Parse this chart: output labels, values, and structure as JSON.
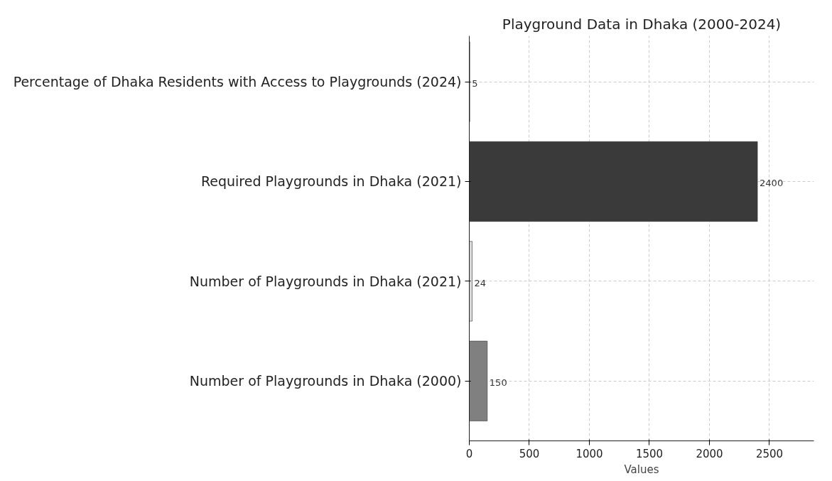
{
  "chart_data": {
    "type": "bar",
    "orientation": "horizontal",
    "title": "Playground Data in Dhaka (2000-2024)",
    "xlabel": "Values",
    "categories": [
      "Percentage of Dhaka Residents with Access to Playgrounds (2024)",
      "Required Playgrounds in Dhaka (2021)",
      "Number of Playgrounds in Dhaka (2021)",
      "Number of Playgrounds in Dhaka (2000)"
    ],
    "values": [
      5,
      2400,
      24,
      150
    ],
    "colors": [
      "#ffffff",
      "#3a3a3a",
      "#d9d9d9",
      "#808080"
    ],
    "xlim": [
      0,
      2870
    ],
    "xticks": [
      0,
      500,
      1000,
      1500,
      2000,
      2500
    ],
    "grid": true,
    "data_labels": true
  }
}
